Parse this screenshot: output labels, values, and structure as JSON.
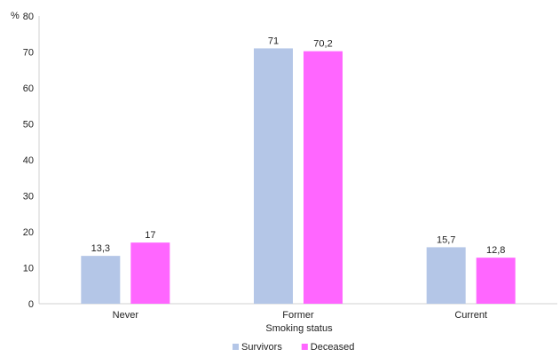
{
  "chart_data": {
    "type": "bar",
    "categories": [
      "Never",
      "Former",
      "Current"
    ],
    "series": [
      {
        "name": "Survivors",
        "values": [
          13.3,
          71,
          15.7
        ],
        "labels": [
          "13,3",
          "71",
          "15,7"
        ],
        "color": "#b4c6e7"
      },
      {
        "name": "Deceased",
        "values": [
          17,
          70.2,
          12.8
        ],
        "labels": [
          "17",
          "70,2",
          "12,8"
        ],
        "color": "#ff66ff"
      }
    ],
    "xlabel": "Smoking status",
    "ylabel": "",
    "y_unit_label": "%",
    "ylim": [
      0,
      80
    ],
    "yticks": [
      0,
      10,
      20,
      30,
      40,
      50,
      60,
      70,
      80
    ],
    "grid": false,
    "legend_position": "bottom-center"
  }
}
